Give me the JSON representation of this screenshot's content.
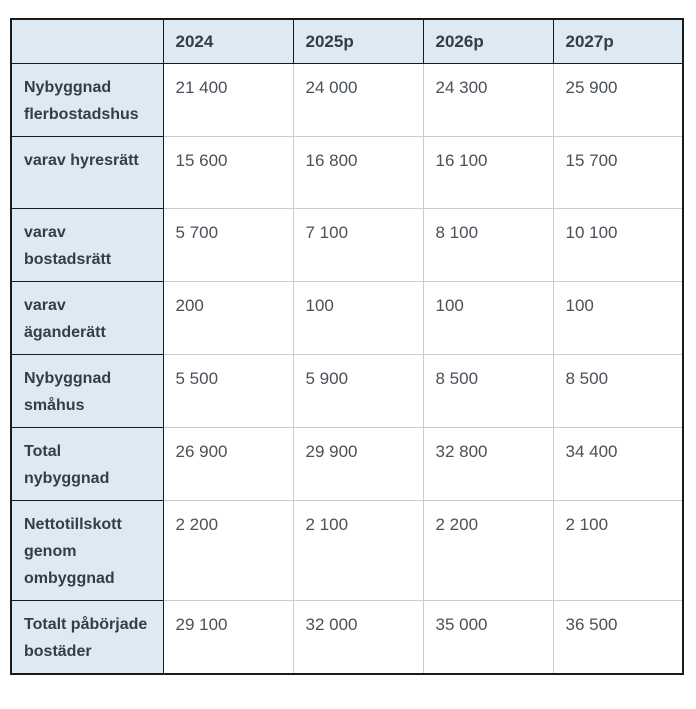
{
  "table": {
    "name": "housing-construction-forecast-table",
    "columns": [
      "",
      "2024",
      "2025p",
      "2026p",
      "2027p"
    ],
    "rows": [
      {
        "label": "Nybyggnad flerbostadshus",
        "values": [
          "21 400",
          "24 000",
          "24 300",
          "25 900"
        ]
      },
      {
        "label": "varav hyresrätt",
        "values": [
          "15 600",
          "16 800",
          "16 100",
          "15 700"
        ]
      },
      {
        "label": "varav bostadsrätt",
        "values": [
          "5 700",
          "7 100",
          "8 100",
          "10 100"
        ]
      },
      {
        "label": "varav äganderätt",
        "values": [
          "200",
          "100",
          "100",
          "100"
        ]
      },
      {
        "label": "Nybyggnad småhus",
        "values": [
          "5 500",
          "5 900",
          "8 500",
          "8 500"
        ]
      },
      {
        "label": "Total nybyggnad",
        "values": [
          "26 900",
          "29 900",
          "32 800",
          "34 400"
        ]
      },
      {
        "label": "Nettotillskott genom ombyggnad",
        "values": [
          "2 200",
          "2 100",
          "2 200",
          "2 100"
        ]
      },
      {
        "label": "Totalt påbörjade bostäder",
        "values": [
          "29 100",
          "32 000",
          "35 000",
          "36 500"
        ]
      }
    ],
    "colors": {
      "accent_bg": "#dde9f3",
      "dark_border": "#1a1a1a",
      "light_border": "#cccccc",
      "heading_text": "#323e48",
      "data_text": "#4a5158",
      "page_bg": "#ffffff"
    }
  }
}
